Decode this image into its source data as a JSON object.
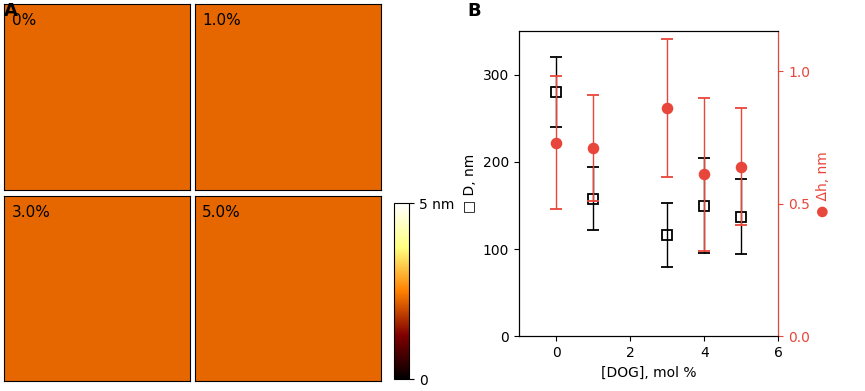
{
  "panel_labels": [
    "A",
    "B"
  ],
  "panel_a": {
    "images": [
      "0%",
      "1.0%",
      "3.0%",
      "5.0%"
    ],
    "colorbar": {
      "range": [
        0,
        5
      ],
      "ticks": [
        {
          "value": 0,
          "label": "0"
        },
        {
          "value": 5,
          "label": "5 nm"
        }
      ]
    }
  },
  "chart_data": {
    "type": "scatter",
    "x_label": "[DOG], mol %",
    "y_label": "□ D, nm",
    "y2_label": "● Δh, nm",
    "x": [
      0,
      1,
      3,
      4,
      5
    ],
    "xlim": [
      -1,
      6
    ],
    "xticks": [
      0,
      2,
      4,
      6
    ],
    "ylim": [
      0,
      350
    ],
    "yticks": [
      0,
      100,
      200,
      300
    ],
    "y2lim": [
      0,
      1.15
    ],
    "y2ticks": [
      {
        "value": 0,
        "label": "0.0"
      },
      {
        "value": 0.5,
        "label": "0.5"
      },
      {
        "value": 1,
        "label": "1.0"
      }
    ],
    "series": [
      {
        "color": "#000000",
        "marker": "square",
        "values": [
          280,
          158,
          116,
          150,
          137
        ],
        "errors": [
          40,
          36,
          37,
          55,
          43
        ]
      },
      {
        "color": "#e8463a",
        "marker": "circle",
        "axis": "y2",
        "values": [
          0.73,
          0.71,
          0.86,
          0.61,
          0.64
        ],
        "errors": [
          0.25,
          0.2,
          0.26,
          0.29,
          0.22
        ]
      }
    ]
  }
}
